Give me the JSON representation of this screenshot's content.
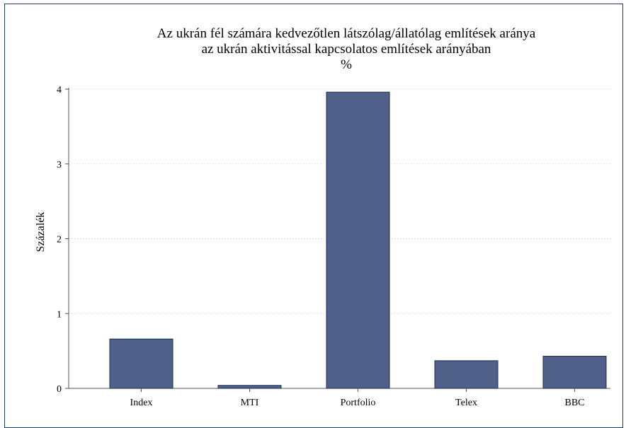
{
  "chart_data": {
    "type": "bar",
    "title": [
      "Az ukrán fél számára kedvezőtlen látszólag/állatólag említések aránya",
      "az ukrán aktivitással kapcsolatos említések arányában",
      "%"
    ],
    "xlabel": "",
    "ylabel": "Százalék",
    "categories": [
      "Index",
      "MTI",
      "Portfolio",
      "Telex",
      "BBC"
    ],
    "values": [
      0.66,
      0.04,
      3.96,
      0.37,
      0.43
    ],
    "ylim": [
      0,
      4
    ],
    "yticks": [
      0,
      1,
      2,
      3,
      4
    ],
    "grid": true,
    "bar_color": "#4f6189",
    "bar_edge_color": "#1f2f55"
  }
}
